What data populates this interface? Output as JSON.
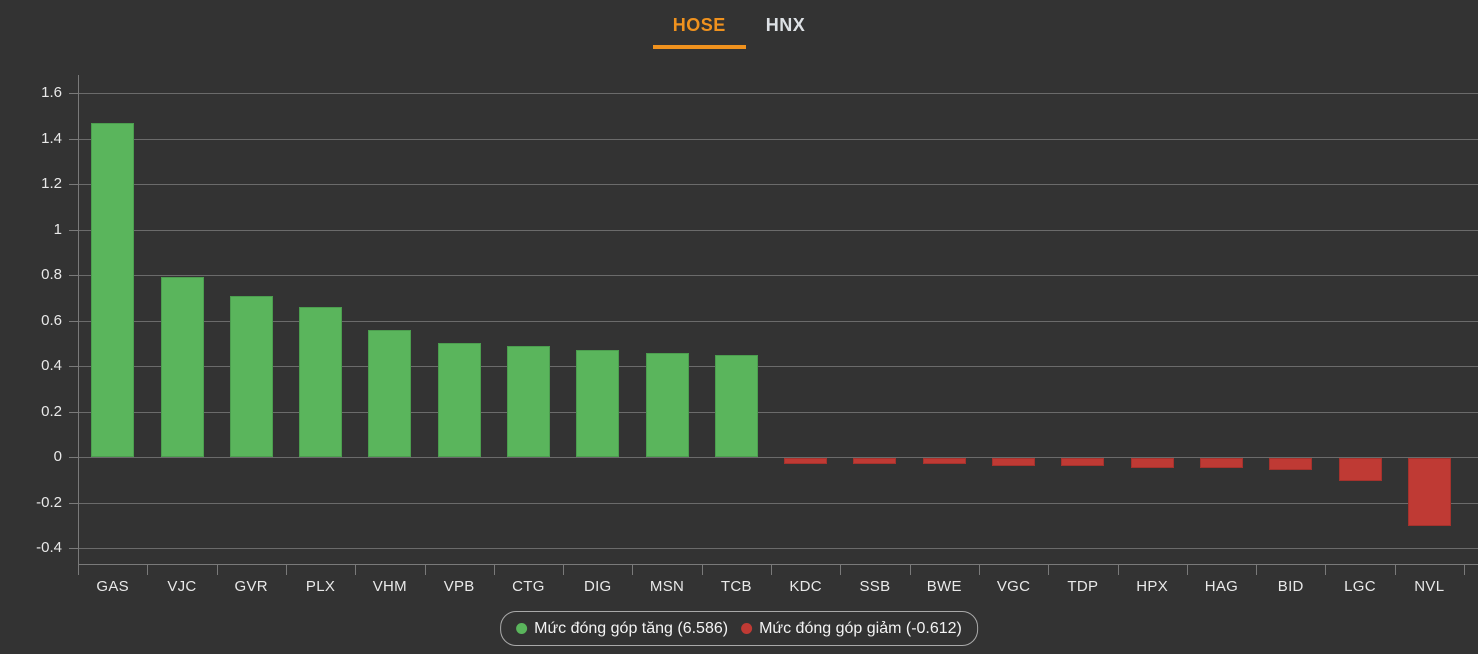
{
  "tabs": [
    {
      "label": "HOSE",
      "active": true
    },
    {
      "label": "HNX",
      "active": false
    }
  ],
  "legend": [
    {
      "label": "Mức đóng góp tăng (6.586)",
      "series": "positive",
      "marker": "green-dot-icon"
    },
    {
      "label": "Mức đóng góp giảm (-0.612)",
      "series": "negative",
      "marker": "red-dot-icon"
    }
  ],
  "chart_data": {
    "type": "bar",
    "title": "",
    "xlabel": "",
    "ylabel": "",
    "categories": [
      "GAS",
      "VJC",
      "GVR",
      "PLX",
      "VHM",
      "VPB",
      "CTG",
      "DIG",
      "MSN",
      "TCB",
      "KDC",
      "SSB",
      "BWE",
      "VGC",
      "TDP",
      "HPX",
      "HAG",
      "BID",
      "LGC",
      "NVL"
    ],
    "values": [
      1.47,
      0.79,
      0.71,
      0.66,
      0.56,
      0.5,
      0.49,
      0.47,
      0.46,
      0.45,
      -0.026,
      -0.028,
      -0.028,
      -0.037,
      -0.037,
      -0.042,
      -0.044,
      -0.054,
      -0.103,
      -0.3
    ],
    "series": [
      {
        "name": "Mức đóng góp tăng",
        "total": 6.586,
        "color": "#5ab55c"
      },
      {
        "name": "Mức đóng góp giảm",
        "total": -0.612,
        "color": "#bf3a34"
      }
    ],
    "yticks": [
      -0.4,
      -0.2,
      0,
      0.2,
      0.4,
      0.6,
      0.8,
      1,
      1.2,
      1.4,
      1.6
    ],
    "ylim": [
      -0.47,
      1.68
    ],
    "grid": true,
    "legend_position": "bottom-center"
  },
  "colors": {
    "background": "#333333",
    "positive": "#5ab55c",
    "positive_border": "#4c9e4f",
    "negative": "#bf3a34",
    "negative_border": "#a5322d",
    "accent_orange": "#f0921e",
    "grid": "#6b6b6b",
    "axis": "#7a7a7a",
    "text": "#e9e9e9",
    "tab_inactive": "#dde1e5",
    "legend_border": "#a9a9a9",
    "legend_text": "#f3f3f3"
  }
}
